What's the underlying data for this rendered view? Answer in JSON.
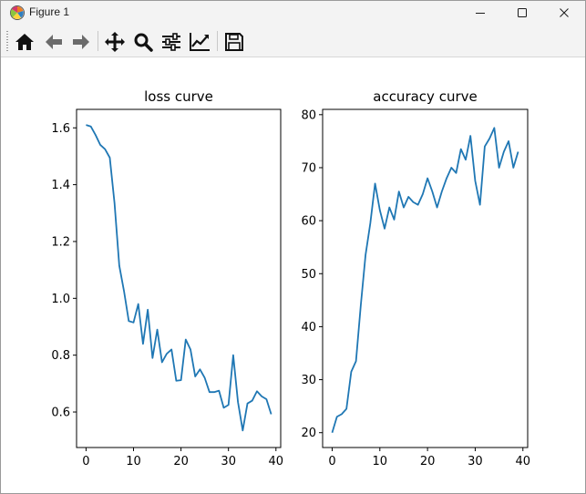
{
  "window": {
    "title": "Figure 1",
    "icon": "matplotlib-icon",
    "controls": [
      {
        "name": "minimize-button",
        "icon": "minimize-icon"
      },
      {
        "name": "maximize-button",
        "icon": "maximize-icon"
      },
      {
        "name": "close-button",
        "icon": "close-icon"
      }
    ]
  },
  "toolbar": {
    "items": [
      {
        "name": "home-button",
        "icon": "home-icon"
      },
      {
        "name": "back-button",
        "icon": "back-arrow-icon"
      },
      {
        "name": "forward-button",
        "icon": "forward-arrow-icon"
      },
      {
        "name": "pan-button",
        "icon": "move-icon"
      },
      {
        "name": "zoom-button",
        "icon": "magnifier-icon"
      },
      {
        "name": "configure-subplots-button",
        "icon": "sliders-icon"
      },
      {
        "name": "edit-axes-button",
        "icon": "line-chart-icon"
      },
      {
        "name": "save-button",
        "icon": "floppy-disk-icon"
      }
    ]
  },
  "colors": {
    "line": "#1f77b4",
    "chrome": "#f3f3f3",
    "axis": "#000000"
  },
  "chart_data": [
    {
      "type": "line",
      "title": "loss curve",
      "xlabel": "",
      "ylabel": "",
      "xlim": [
        -2,
        41
      ],
      "ylim": [
        0.475,
        1.665
      ],
      "xticks": [
        0,
        10,
        20,
        30,
        40
      ],
      "yticks": [
        0.6,
        0.8,
        1.0,
        1.2,
        1.4,
        1.6
      ],
      "ytick_labels": [
        "0.6",
        "0.8",
        "1.0",
        "1.2",
        "1.4",
        "1.6"
      ],
      "grid": false,
      "series": [
        {
          "x": [
            0,
            1,
            2,
            3,
            4,
            5,
            6,
            7,
            8,
            9,
            10,
            11,
            12,
            13,
            14,
            15,
            16,
            17,
            18,
            19,
            20,
            21,
            22,
            23,
            24,
            25,
            26,
            27,
            28,
            29,
            30,
            31,
            32,
            33,
            34,
            35,
            36,
            37,
            38,
            39
          ],
          "values": [
            1.61,
            1.605,
            1.575,
            1.54,
            1.525,
            1.495,
            1.335,
            1.115,
            1.025,
            0.92,
            0.915,
            0.98,
            0.84,
            0.96,
            0.79,
            0.89,
            0.775,
            0.805,
            0.82,
            0.71,
            0.712,
            0.855,
            0.82,
            0.725,
            0.75,
            0.72,
            0.67,
            0.67,
            0.675,
            0.615,
            0.625,
            0.8,
            0.635,
            0.535,
            0.63,
            0.64,
            0.673,
            0.655,
            0.645,
            0.592
          ]
        }
      ]
    },
    {
      "type": "line",
      "title": "accuracy curve",
      "xlabel": "",
      "ylabel": "",
      "xlim": [
        -2,
        41
      ],
      "ylim": [
        17.2,
        81
      ],
      "xticks": [
        0,
        10,
        20,
        30,
        40
      ],
      "yticks": [
        20,
        30,
        40,
        50,
        60,
        70,
        80
      ],
      "ytick_labels": [
        "20",
        "30",
        "40",
        "50",
        "60",
        "70",
        "80"
      ],
      "grid": false,
      "series": [
        {
          "x": [
            0,
            1,
            2,
            3,
            4,
            5,
            6,
            7,
            8,
            9,
            10,
            11,
            12,
            13,
            14,
            15,
            16,
            17,
            18,
            19,
            20,
            21,
            22,
            23,
            24,
            25,
            26,
            27,
            28,
            29,
            30,
            31,
            32,
            33,
            34,
            35,
            36,
            37,
            38,
            39
          ],
          "values": [
            20,
            23,
            23.5,
            24.5,
            31.5,
            33.5,
            44,
            53.5,
            59.5,
            67,
            62,
            58.5,
            62.5,
            60.2,
            65.5,
            62.5,
            64.5,
            63.5,
            63,
            65,
            68,
            65.5,
            62.5,
            65.5,
            68,
            70,
            69,
            73.5,
            71.5,
            76,
            67.5,
            63,
            74,
            75.5,
            77.5,
            70,
            73,
            75,
            70,
            73
          ]
        }
      ]
    }
  ]
}
